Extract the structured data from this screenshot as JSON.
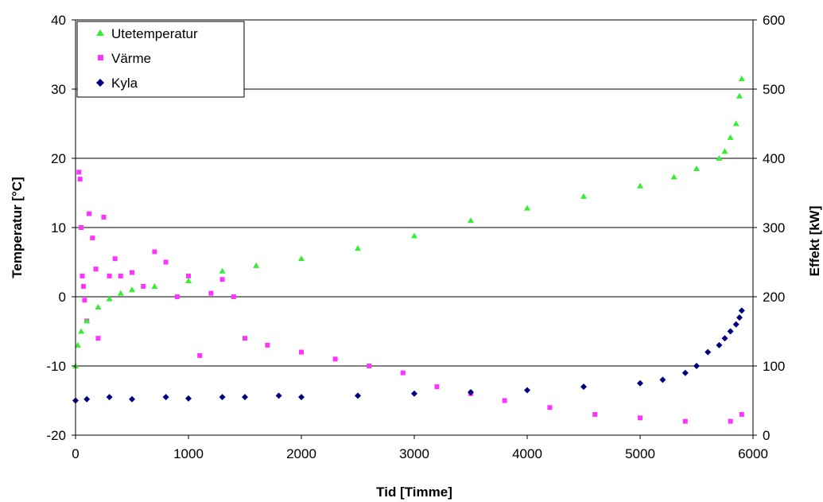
{
  "chart_data": {
    "type": "scatter",
    "title": "",
    "xlabel": "Tid [Timme]",
    "ylabel_left": "Temperatur [°C]",
    "ylabel_right": "Effekt [kW]",
    "xlim": [
      0,
      6000
    ],
    "ylim_left": [
      -20,
      40
    ],
    "ylim_right": [
      0,
      600
    ],
    "x_ticks": [
      "0",
      "1000",
      "2000",
      "3000",
      "4000",
      "5000",
      "6000"
    ],
    "y_left_ticks": [
      "-20",
      "-10",
      "0",
      "10",
      "20",
      "30",
      "40"
    ],
    "y_right_ticks": [
      "0",
      "100",
      "200",
      "300",
      "400",
      "500",
      "600"
    ],
    "grid": "horizontal",
    "legend_position": "top-left",
    "series": [
      {
        "name": "Utetemperatur",
        "axis": "left",
        "marker": "triangle",
        "color": "#33ee33",
        "x": [
          0,
          20,
          50,
          100,
          200,
          300,
          400,
          500,
          700,
          1000,
          1300,
          1600,
          2000,
          2500,
          3000,
          3500,
          4000,
          4500,
          5000,
          5300,
          5500,
          5700,
          5750,
          5800,
          5850,
          5880,
          5900
        ],
        "y": [
          -10,
          -7,
          -5,
          -3.5,
          -1.5,
          -0.3,
          0.5,
          1,
          1.5,
          2.3,
          3.7,
          4.5,
          5.5,
          7,
          8.8,
          11,
          12.8,
          14.5,
          16,
          17.3,
          18.5,
          20,
          21,
          23,
          25,
          29,
          31.5
        ]
      },
      {
        "name": "Värme",
        "axis": "right",
        "marker": "square",
        "color": "#ff33ff",
        "x": [
          30,
          40,
          50,
          60,
          70,
          80,
          100,
          120,
          150,
          180,
          200,
          250,
          300,
          350,
          400,
          500,
          600,
          700,
          800,
          900,
          1000,
          1100,
          1200,
          1300,
          1400,
          1500,
          1700,
          2000,
          2300,
          2600,
          2900,
          3200,
          3500,
          3800,
          4200,
          4600,
          5000,
          5400,
          5800,
          5900
        ],
        "y": [
          380,
          370,
          300,
          230,
          215,
          195,
          165,
          320,
          285,
          240,
          140,
          315,
          230,
          255,
          230,
          235,
          215,
          265,
          250,
          200,
          230,
          115,
          205,
          225,
          200,
          140,
          130,
          120,
          110,
          100,
          90,
          70,
          60,
          50,
          40,
          30,
          25,
          20,
          20,
          30
        ]
      },
      {
        "name": "Kyla",
        "axis": "right",
        "marker": "diamond",
        "color": "#000080",
        "x": [
          0,
          100,
          300,
          500,
          800,
          1000,
          1300,
          1500,
          1800,
          2000,
          2500,
          3000,
          3500,
          4000,
          4500,
          5000,
          5200,
          5400,
          5500,
          5600,
          5700,
          5750,
          5800,
          5850,
          5880,
          5900
        ],
        "y": [
          50,
          52,
          55,
          52,
          55,
          53,
          55,
          55,
          57,
          55,
          57,
          60,
          62,
          65,
          70,
          75,
          80,
          90,
          100,
          120,
          130,
          140,
          150,
          160,
          170,
          180
        ]
      }
    ]
  }
}
